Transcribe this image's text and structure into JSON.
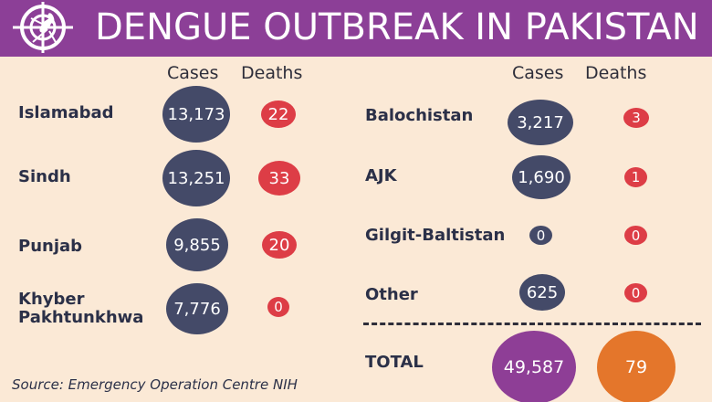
{
  "title": "DENGUE OUTBREAK IN PAKISTAN",
  "columns": {
    "cases": "Cases",
    "deaths": "Deaths"
  },
  "left": [
    {
      "region": "Islamabad",
      "cases": "13,173",
      "deaths": "22"
    },
    {
      "region": "Sindh",
      "cases": "13,251",
      "deaths": "33"
    },
    {
      "region": "Punjab",
      "cases": "9,855",
      "deaths": "20"
    },
    {
      "region_line1": "Khyber",
      "region_line2": "Pakhtunkhwa",
      "cases": "7,776",
      "deaths": "0"
    }
  ],
  "right": [
    {
      "region": "Balochistan",
      "cases": "3,217",
      "deaths": "3"
    },
    {
      "region": "AJK",
      "cases": "1,690",
      "deaths": "1"
    },
    {
      "region": "Gilgit-Baltistan",
      "cases": "0",
      "deaths": "0"
    },
    {
      "region": "Other",
      "cases": "625",
      "deaths": "0"
    }
  ],
  "total": {
    "label": "TOTAL",
    "cases": "49,587",
    "deaths": "79"
  },
  "source": "Source: Emergency Operation Centre NIH",
  "colors": {
    "header": "#8c3f97",
    "background": "#fbe9d6",
    "cases": "#444a68",
    "deaths": "#dd3d46",
    "total_cases": "#8e3e96",
    "total_deaths": "#e4762b"
  },
  "icons": {
    "logo": "mosquito-target-icon"
  }
}
